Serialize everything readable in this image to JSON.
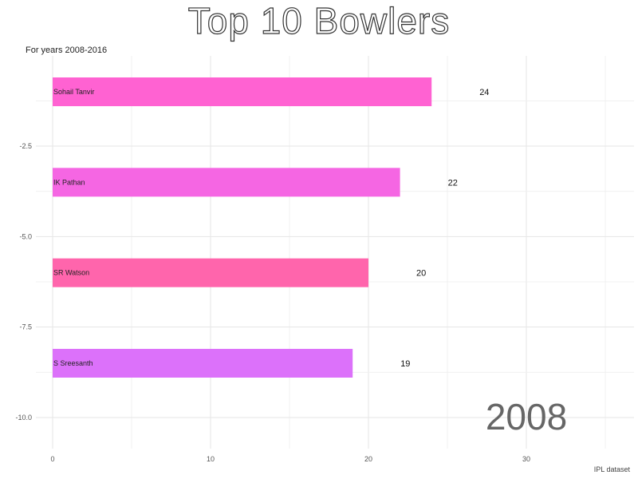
{
  "chart_data": {
    "type": "bar",
    "orientation": "horizontal",
    "title": "Top 10 Bowlers",
    "subtitle": "For years 2008-2016",
    "caption": "IPL dataset",
    "year_label": "2008",
    "xlim": [
      0,
      35
    ],
    "ylim": [
      -10.5,
      -0.5
    ],
    "x_ticks": [
      0,
      10,
      20,
      30
    ],
    "y_ticks": [
      -2.5,
      -5.0,
      -7.5,
      -10.0
    ],
    "y_tick_labels": [
      "-2.5",
      "-5.0",
      "-7.5",
      "-10.0"
    ],
    "grid": true,
    "bars": [
      {
        "label": "Sohail Tanvir",
        "y": -1,
        "value": 24,
        "value_label": "24",
        "color": "#ff62d2"
      },
      {
        "label": "IK Pathan",
        "y": -3.5,
        "value": 22,
        "value_label": "22",
        "color": "#f566e3"
      },
      {
        "label": "SR Watson",
        "y": -6,
        "value": 20,
        "value_label": "20",
        "color": "#ff65ac"
      },
      {
        "label": "S Sreesanth",
        "y": -8.5,
        "value": 19,
        "value_label": "19",
        "color": "#dc71fa"
      }
    ]
  }
}
